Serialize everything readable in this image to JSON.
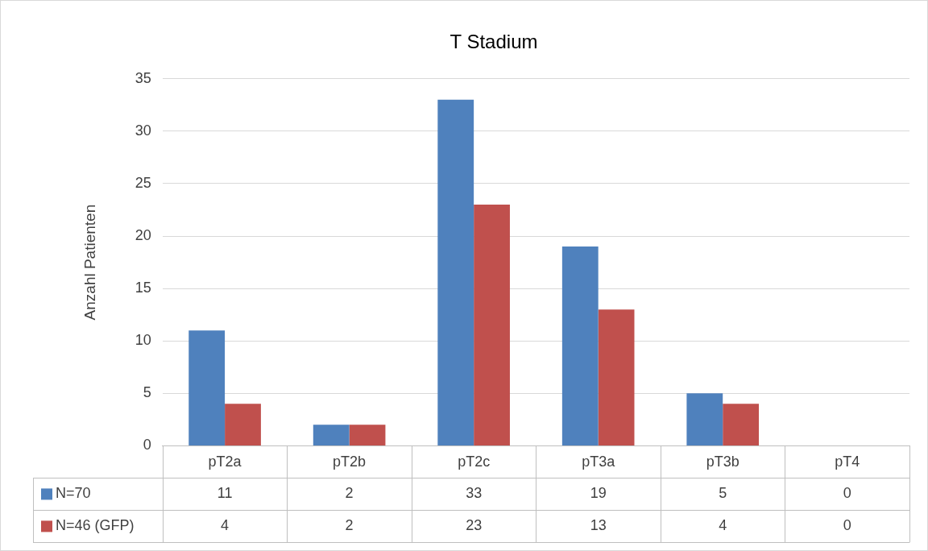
{
  "chart_data": {
    "type": "bar",
    "title": "T Stadium",
    "ylabel": "Anzahl Patienten",
    "categories": [
      "pT2a",
      "pT2b",
      "pT2c",
      "pT3a",
      "pT3b",
      "pT4"
    ],
    "series": [
      {
        "name": "N=70",
        "color": "#4f81bd",
        "values": [
          11,
          2,
          33,
          19,
          5,
          0
        ]
      },
      {
        "name": "N=46 (GFP)",
        "color": "#c0504d",
        "values": [
          4,
          2,
          23,
          13,
          4,
          0
        ]
      }
    ],
    "ylim": [
      0,
      35
    ],
    "yticks": [
      0,
      5,
      10,
      15,
      20,
      25,
      30,
      35
    ],
    "grid": "y",
    "legend": "bottom",
    "data_labels": true
  }
}
